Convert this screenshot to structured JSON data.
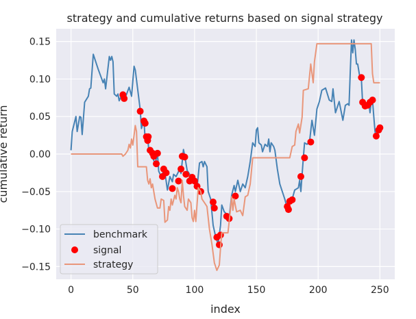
{
  "chart_data": {
    "type": "line",
    "title": "strategy and cumulative returns based on signal strategy",
    "xlabel": "index",
    "ylabel": "cumulative return",
    "xlim": [
      -12,
      262
    ],
    "ylim": [
      -0.167,
      0.167
    ],
    "xticks": [
      0,
      50,
      100,
      150,
      200,
      250
    ],
    "yticks": [
      -0.15,
      -0.1,
      -0.05,
      0.0,
      0.05,
      0.1,
      0.15
    ],
    "xtick_labels": [
      "0",
      "50",
      "100",
      "150",
      "200",
      "250"
    ],
    "ytick_labels": [
      "−0.15",
      "−0.10",
      "−0.05",
      "0.00",
      "0.05",
      "0.10",
      "0.15"
    ],
    "grid": true,
    "legend_position": "lower-left",
    "series": [
      {
        "name": "benchmark",
        "kind": "line",
        "color": "#4682b4",
        "points": [
          [
            0,
            0.005
          ],
          [
            1,
            0.03
          ],
          [
            4,
            0.05
          ],
          [
            5,
            0.03
          ],
          [
            7,
            0.05
          ],
          [
            8,
            0.049
          ],
          [
            9,
            0.026
          ],
          [
            11,
            0.069
          ],
          [
            14,
            0.077
          ],
          [
            15,
            0.087
          ],
          [
            16,
            0.088
          ],
          [
            18,
            0.133
          ],
          [
            22,
            0.113
          ],
          [
            26,
            0.095
          ],
          [
            27,
            0.1
          ],
          [
            28,
            0.087
          ],
          [
            31,
            0.13
          ],
          [
            32,
            0.125
          ],
          [
            33,
            0.13
          ],
          [
            34,
            0.123
          ],
          [
            35,
            0.08
          ],
          [
            37,
            0.077
          ],
          [
            38,
            0.08
          ],
          [
            39,
            0.071
          ],
          [
            41,
            0.079
          ],
          [
            43,
            0.072
          ],
          [
            45,
            0.08
          ],
          [
            47,
            0.089
          ],
          [
            49,
            0.077
          ],
          [
            51,
            0.117
          ],
          [
            52,
            0.112
          ],
          [
            56,
            0.059
          ],
          [
            57,
            0.034
          ],
          [
            59,
            0.045
          ],
          [
            60,
            0.02
          ],
          [
            62,
            0.025
          ],
          [
            63,
            0.003
          ],
          [
            65,
            0.0
          ],
          [
            68,
            -0.013
          ],
          [
            70,
            0.0
          ],
          [
            71,
            -0.023
          ],
          [
            73,
            -0.03
          ],
          [
            75,
            -0.022
          ],
          [
            76,
            -0.025
          ],
          [
            78,
            -0.048
          ],
          [
            80,
            -0.03
          ],
          [
            82,
            -0.037
          ],
          [
            83,
            -0.027
          ],
          [
            85,
            -0.03
          ],
          [
            88,
            -0.02
          ],
          [
            89,
            -0.026
          ],
          [
            91,
            0.006
          ],
          [
            92,
            -0.002
          ],
          [
            94,
            -0.022
          ],
          [
            96,
            -0.027
          ],
          [
            99,
            -0.033
          ],
          [
            101,
            -0.04
          ],
          [
            102,
            -0.045
          ],
          [
            104,
            -0.012
          ],
          [
            106,
            -0.01
          ],
          [
            107,
            -0.017
          ],
          [
            108,
            -0.01
          ],
          [
            110,
            -0.017
          ],
          [
            111,
            -0.05
          ],
          [
            113,
            -0.06
          ],
          [
            115,
            -0.095
          ],
          [
            117,
            -0.11
          ],
          [
            119,
            -0.12
          ],
          [
            121,
            -0.095
          ],
          [
            122,
            -0.068
          ],
          [
            124,
            -0.077
          ],
          [
            126,
            -0.08
          ],
          [
            128,
            -0.085
          ],
          [
            130,
            -0.055
          ],
          [
            132,
            -0.042
          ],
          [
            133,
            -0.05
          ],
          [
            135,
            -0.035
          ],
          [
            137,
            -0.05
          ],
          [
            139,
            -0.04
          ],
          [
            141,
            -0.045
          ],
          [
            143,
            -0.03
          ],
          [
            145,
            -0.01
          ],
          [
            147,
            0.015
          ],
          [
            149,
            0.01
          ],
          [
            150,
            0.032
          ],
          [
            151,
            0.035
          ],
          [
            152,
            0.015
          ],
          [
            154,
            0.012
          ],
          [
            155,
            0.003
          ],
          [
            157,
            0.013
          ],
          [
            159,
            0.01
          ],
          [
            160,
            0.02
          ],
          [
            161,
            0.003
          ],
          [
            162,
            0.015
          ],
          [
            164,
            0.01
          ],
          [
            165,
            0.005
          ],
          [
            167,
            -0.02
          ],
          [
            169,
            -0.04
          ],
          [
            171,
            -0.05
          ],
          [
            173,
            -0.06
          ],
          [
            175,
            -0.072
          ],
          [
            177,
            -0.063
          ],
          [
            179,
            -0.06
          ],
          [
            181,
            -0.048
          ],
          [
            184,
            -0.045
          ],
          [
            185,
            -0.035
          ],
          [
            186,
            -0.05
          ],
          [
            188,
            -0.005
          ],
          [
            189,
            0.015
          ],
          [
            191,
            0.013
          ],
          [
            193,
            0.016
          ],
          [
            195,
            0.045
          ],
          [
            197,
            0.025
          ],
          [
            199,
            0.06
          ],
          [
            201,
            0.07
          ],
          [
            203,
            0.085
          ],
          [
            206,
            0.088
          ],
          [
            209,
            0.072
          ],
          [
            211,
            0.07
          ],
          [
            212,
            0.087
          ],
          [
            214,
            0.055
          ],
          [
            217,
            0.07
          ],
          [
            220,
            0.045
          ],
          [
            222,
            0.065
          ],
          [
            224,
            0.067
          ],
          [
            225,
            0.065
          ],
          [
            226,
            0.11
          ],
          [
            227,
            0.152
          ],
          [
            228,
            0.135
          ],
          [
            229,
            0.152
          ],
          [
            230,
            0.14
          ],
          [
            231,
            0.12
          ],
          [
            232,
            0.12
          ],
          [
            234,
            0.1
          ],
          [
            235,
            0.1
          ],
          [
            236,
            0.068
          ],
          [
            237,
            0.065
          ],
          [
            238,
            0.07
          ],
          [
            239,
            0.063
          ],
          [
            240,
            0.068
          ],
          [
            241,
            0.07
          ],
          [
            242,
            0.055
          ],
          [
            243,
            0.07
          ],
          [
            244,
            0.072
          ],
          [
            245,
            0.05
          ],
          [
            246,
            0.03
          ],
          [
            247,
            0.024
          ],
          [
            248,
            0.032
          ],
          [
            249,
            0.035
          ],
          [
            250,
            0.034
          ]
        ]
      },
      {
        "name": "signal",
        "kind": "scatter",
        "color": "#ff0000",
        "points": [
          [
            42,
            0.079
          ],
          [
            43,
            0.074
          ],
          [
            56,
            0.057
          ],
          [
            59,
            0.044
          ],
          [
            60,
            0.041
          ],
          [
            61,
            0.023
          ],
          [
            62,
            0.018
          ],
          [
            62.5,
            0.023
          ],
          [
            64,
            0.005
          ],
          [
            66,
            0.001
          ],
          [
            67,
            -0.003
          ],
          [
            69,
            -0.013
          ],
          [
            70,
            0.001
          ],
          [
            74,
            -0.03
          ],
          [
            75,
            -0.02
          ],
          [
            77,
            -0.025
          ],
          [
            82,
            -0.046
          ],
          [
            87,
            -0.036
          ],
          [
            89,
            -0.02
          ],
          [
            90,
            -0.003
          ],
          [
            92,
            -0.004
          ],
          [
            93,
            -0.027
          ],
          [
            96,
            -0.036
          ],
          [
            98,
            -0.031
          ],
          [
            100,
            -0.036
          ],
          [
            102,
            -0.043
          ],
          [
            105,
            -0.05
          ],
          [
            115,
            -0.064
          ],
          [
            116,
            -0.072
          ],
          [
            118,
            -0.111
          ],
          [
            120,
            -0.121
          ],
          [
            121,
            -0.108
          ],
          [
            126,
            -0.083
          ],
          [
            128,
            -0.086
          ],
          [
            133,
            -0.056
          ],
          [
            175,
            -0.07
          ],
          [
            176,
            -0.074
          ],
          [
            177,
            -0.063
          ],
          [
            179,
            -0.061
          ],
          [
            186,
            -0.03
          ],
          [
            189,
            -0.005
          ],
          [
            194,
            0.016
          ],
          [
            235,
            0.102
          ],
          [
            236,
            0.069
          ],
          [
            238,
            0.064
          ],
          [
            240,
            0.065
          ],
          [
            242,
            0.069
          ],
          [
            244,
            0.072
          ],
          [
            247,
            0.024
          ],
          [
            249,
            0.032
          ],
          [
            250,
            0.035
          ]
        ]
      },
      {
        "name": "strategy",
        "kind": "line",
        "color": "#e9967a",
        "points": [
          [
            0,
            0.0
          ],
          [
            41,
            0.0
          ],
          [
            42,
            -0.003
          ],
          [
            44,
            0.0
          ],
          [
            46,
            0.005
          ],
          [
            47,
            0.013
          ],
          [
            48,
            0.008
          ],
          [
            49,
            0.02
          ],
          [
            50,
            0.012
          ],
          [
            52,
            0.038
          ],
          [
            53,
            0.03
          ],
          [
            54,
            -0.017
          ],
          [
            61,
            -0.017
          ],
          [
            62,
            -0.035
          ],
          [
            63,
            -0.04
          ],
          [
            64,
            -0.033
          ],
          [
            65,
            -0.045
          ],
          [
            66,
            -0.04
          ],
          [
            67,
            -0.05
          ],
          [
            68,
            -0.06
          ],
          [
            70,
            -0.072
          ],
          [
            72,
            -0.072
          ],
          [
            73,
            -0.06
          ],
          [
            75,
            -0.062
          ],
          [
            76,
            -0.091
          ],
          [
            78,
            -0.088
          ],
          [
            79,
            -0.07
          ],
          [
            80,
            -0.075
          ],
          [
            81,
            -0.06
          ],
          [
            82,
            -0.068
          ],
          [
            84,
            -0.055
          ],
          [
            85,
            -0.06
          ],
          [
            86,
            -0.045
          ],
          [
            87,
            -0.05
          ],
          [
            88,
            -0.06
          ],
          [
            89,
            -0.065
          ],
          [
            90,
            -0.035
          ],
          [
            91,
            -0.055
          ],
          [
            92,
            -0.07
          ],
          [
            94,
            -0.075
          ],
          [
            95,
            -0.06
          ],
          [
            97,
            -0.065
          ],
          [
            98,
            -0.085
          ],
          [
            99,
            -0.09
          ],
          [
            100,
            -0.075
          ],
          [
            101,
            -0.09
          ],
          [
            103,
            -0.045
          ],
          [
            105,
            -0.05
          ],
          [
            106,
            -0.06
          ],
          [
            108,
            -0.065
          ],
          [
            110,
            -0.07
          ],
          [
            112,
            -0.1
          ],
          [
            114,
            -0.12
          ],
          [
            116,
            -0.145
          ],
          [
            118,
            -0.155
          ],
          [
            120,
            -0.148
          ],
          [
            121,
            -0.125
          ],
          [
            122,
            -0.105
          ],
          [
            127,
            -0.105
          ],
          [
            129,
            -0.075
          ],
          [
            130,
            -0.057
          ],
          [
            131,
            -0.075
          ],
          [
            132,
            -0.06
          ],
          [
            134,
            -0.077
          ],
          [
            137,
            -0.075
          ],
          [
            139,
            -0.082
          ],
          [
            141,
            -0.057
          ],
          [
            143,
            -0.055
          ],
          [
            145,
            -0.04
          ],
          [
            147,
            -0.005
          ],
          [
            177,
            -0.005
          ],
          [
            179,
            0.01
          ],
          [
            181,
            0.012
          ],
          [
            182,
            0.03
          ],
          [
            184,
            0.04
          ],
          [
            185,
            0.028
          ],
          [
            187,
            0.049
          ],
          [
            188,
            0.085
          ],
          [
            192,
            0.087
          ],
          [
            194,
            0.12
          ],
          [
            196,
            0.095
          ],
          [
            197,
            0.123
          ],
          [
            199,
            0.147
          ],
          [
            243,
            0.147
          ],
          [
            244,
            0.107
          ],
          [
            245,
            0.095
          ],
          [
            250,
            0.095
          ]
        ]
      }
    ]
  }
}
